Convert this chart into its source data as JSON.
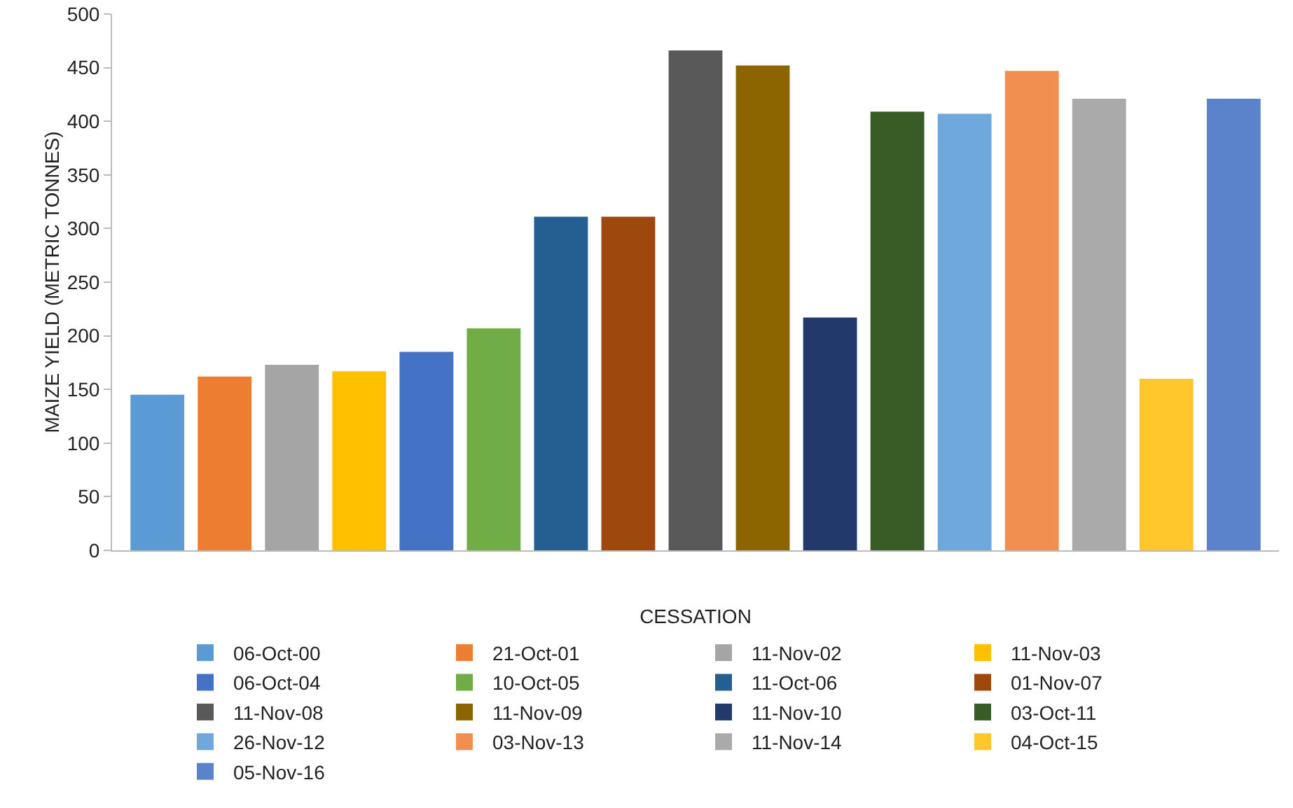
{
  "chart_data": {
    "type": "bar",
    "xlabel": "CESSATION",
    "ylabel": "MAIZE YIELD (METRIC TONNES)",
    "categories": [
      null
    ],
    "ylim": [
      0,
      500
    ],
    "yticks": [
      0,
      50,
      100,
      150,
      200,
      250,
      300,
      350,
      400,
      450,
      500
    ],
    "grid": false,
    "legend": "bottom",
    "series": [
      {
        "name": "06-Oct-00",
        "color": "#5b9bd5",
        "values": [
          145
        ]
      },
      {
        "name": "21-Oct-01",
        "color": "#ed7d31",
        "values": [
          162
        ]
      },
      {
        "name": "11-Nov-02",
        "color": "#a5a5a5",
        "values": [
          173
        ]
      },
      {
        "name": "11-Nov-03",
        "color": "#ffc000",
        "values": [
          167
        ]
      },
      {
        "name": "06-Oct-04",
        "color": "#4472c4",
        "values": [
          185
        ]
      },
      {
        "name": "10-Oct-05",
        "color": "#70ad47",
        "values": [
          207
        ]
      },
      {
        "name": "11-Oct-06",
        "color": "#255e91",
        "values": [
          311
        ]
      },
      {
        "name": "01-Nov-07",
        "color": "#9e480e",
        "values": [
          311
        ]
      },
      {
        "name": "11-Nov-08",
        "color": "#595959",
        "values": [
          466
        ]
      },
      {
        "name": "11-Nov-09",
        "color": "#8c6400",
        "values": [
          452
        ]
      },
      {
        "name": "11-Nov-10",
        "color": "#223a6b",
        "values": [
          217
        ]
      },
      {
        "name": "03-Oct-11",
        "color": "#385c25",
        "values": [
          409
        ]
      },
      {
        "name": "26-Nov-12",
        "color": "#6fa8dc",
        "values": [
          407
        ]
      },
      {
        "name": "03-Nov-13",
        "color": "#f08f50",
        "values": [
          447
        ]
      },
      {
        "name": "11-Nov-14",
        "color": "#aaaaaa",
        "values": [
          421
        ]
      },
      {
        "name": "04-Oct-15",
        "color": "#ffc72c",
        "values": [
          160
        ]
      },
      {
        "name": "05-Nov-16",
        "color": "#5b83cc",
        "values": [
          421
        ]
      }
    ]
  }
}
